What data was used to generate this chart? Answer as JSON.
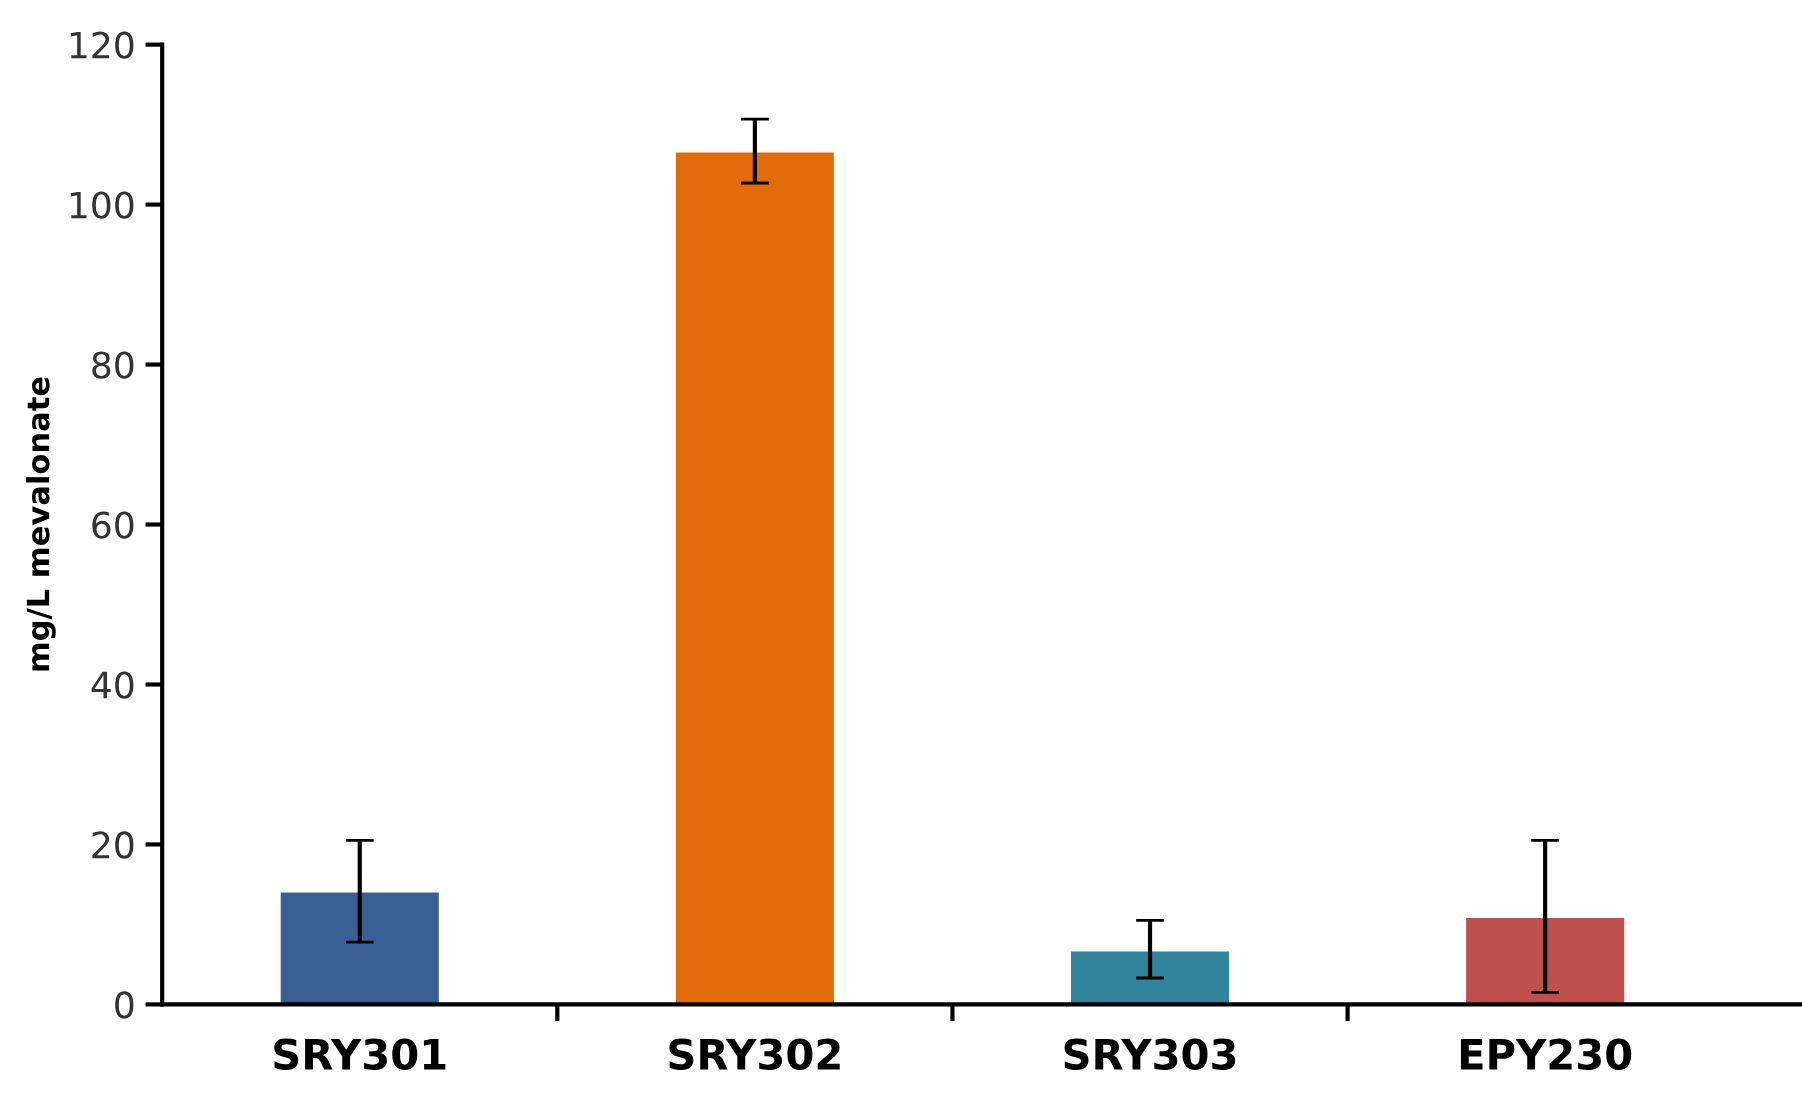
{
  "chart_data": {
    "type": "bar",
    "ylabel": "mg/L mevalonate",
    "categories": [
      "SRY301",
      "SRY302",
      "SRY303",
      "EPY230"
    ],
    "values": [
      14,
      106.5,
      6.6,
      10.8
    ],
    "colors": [
      "#3a5f95",
      "#e36c0a",
      "#31849b",
      "#c0504d"
    ],
    "errors": [
      [
        7.8,
        20.5
      ],
      [
        102.7,
        110.7
      ],
      [
        3.3,
        10.5
      ],
      [
        1.5,
        20.5
      ]
    ],
    "ylim": [
      0,
      120
    ],
    "yticks": [
      0,
      20,
      40,
      60,
      80,
      100,
      120
    ],
    "grid": false,
    "legend": false
  }
}
